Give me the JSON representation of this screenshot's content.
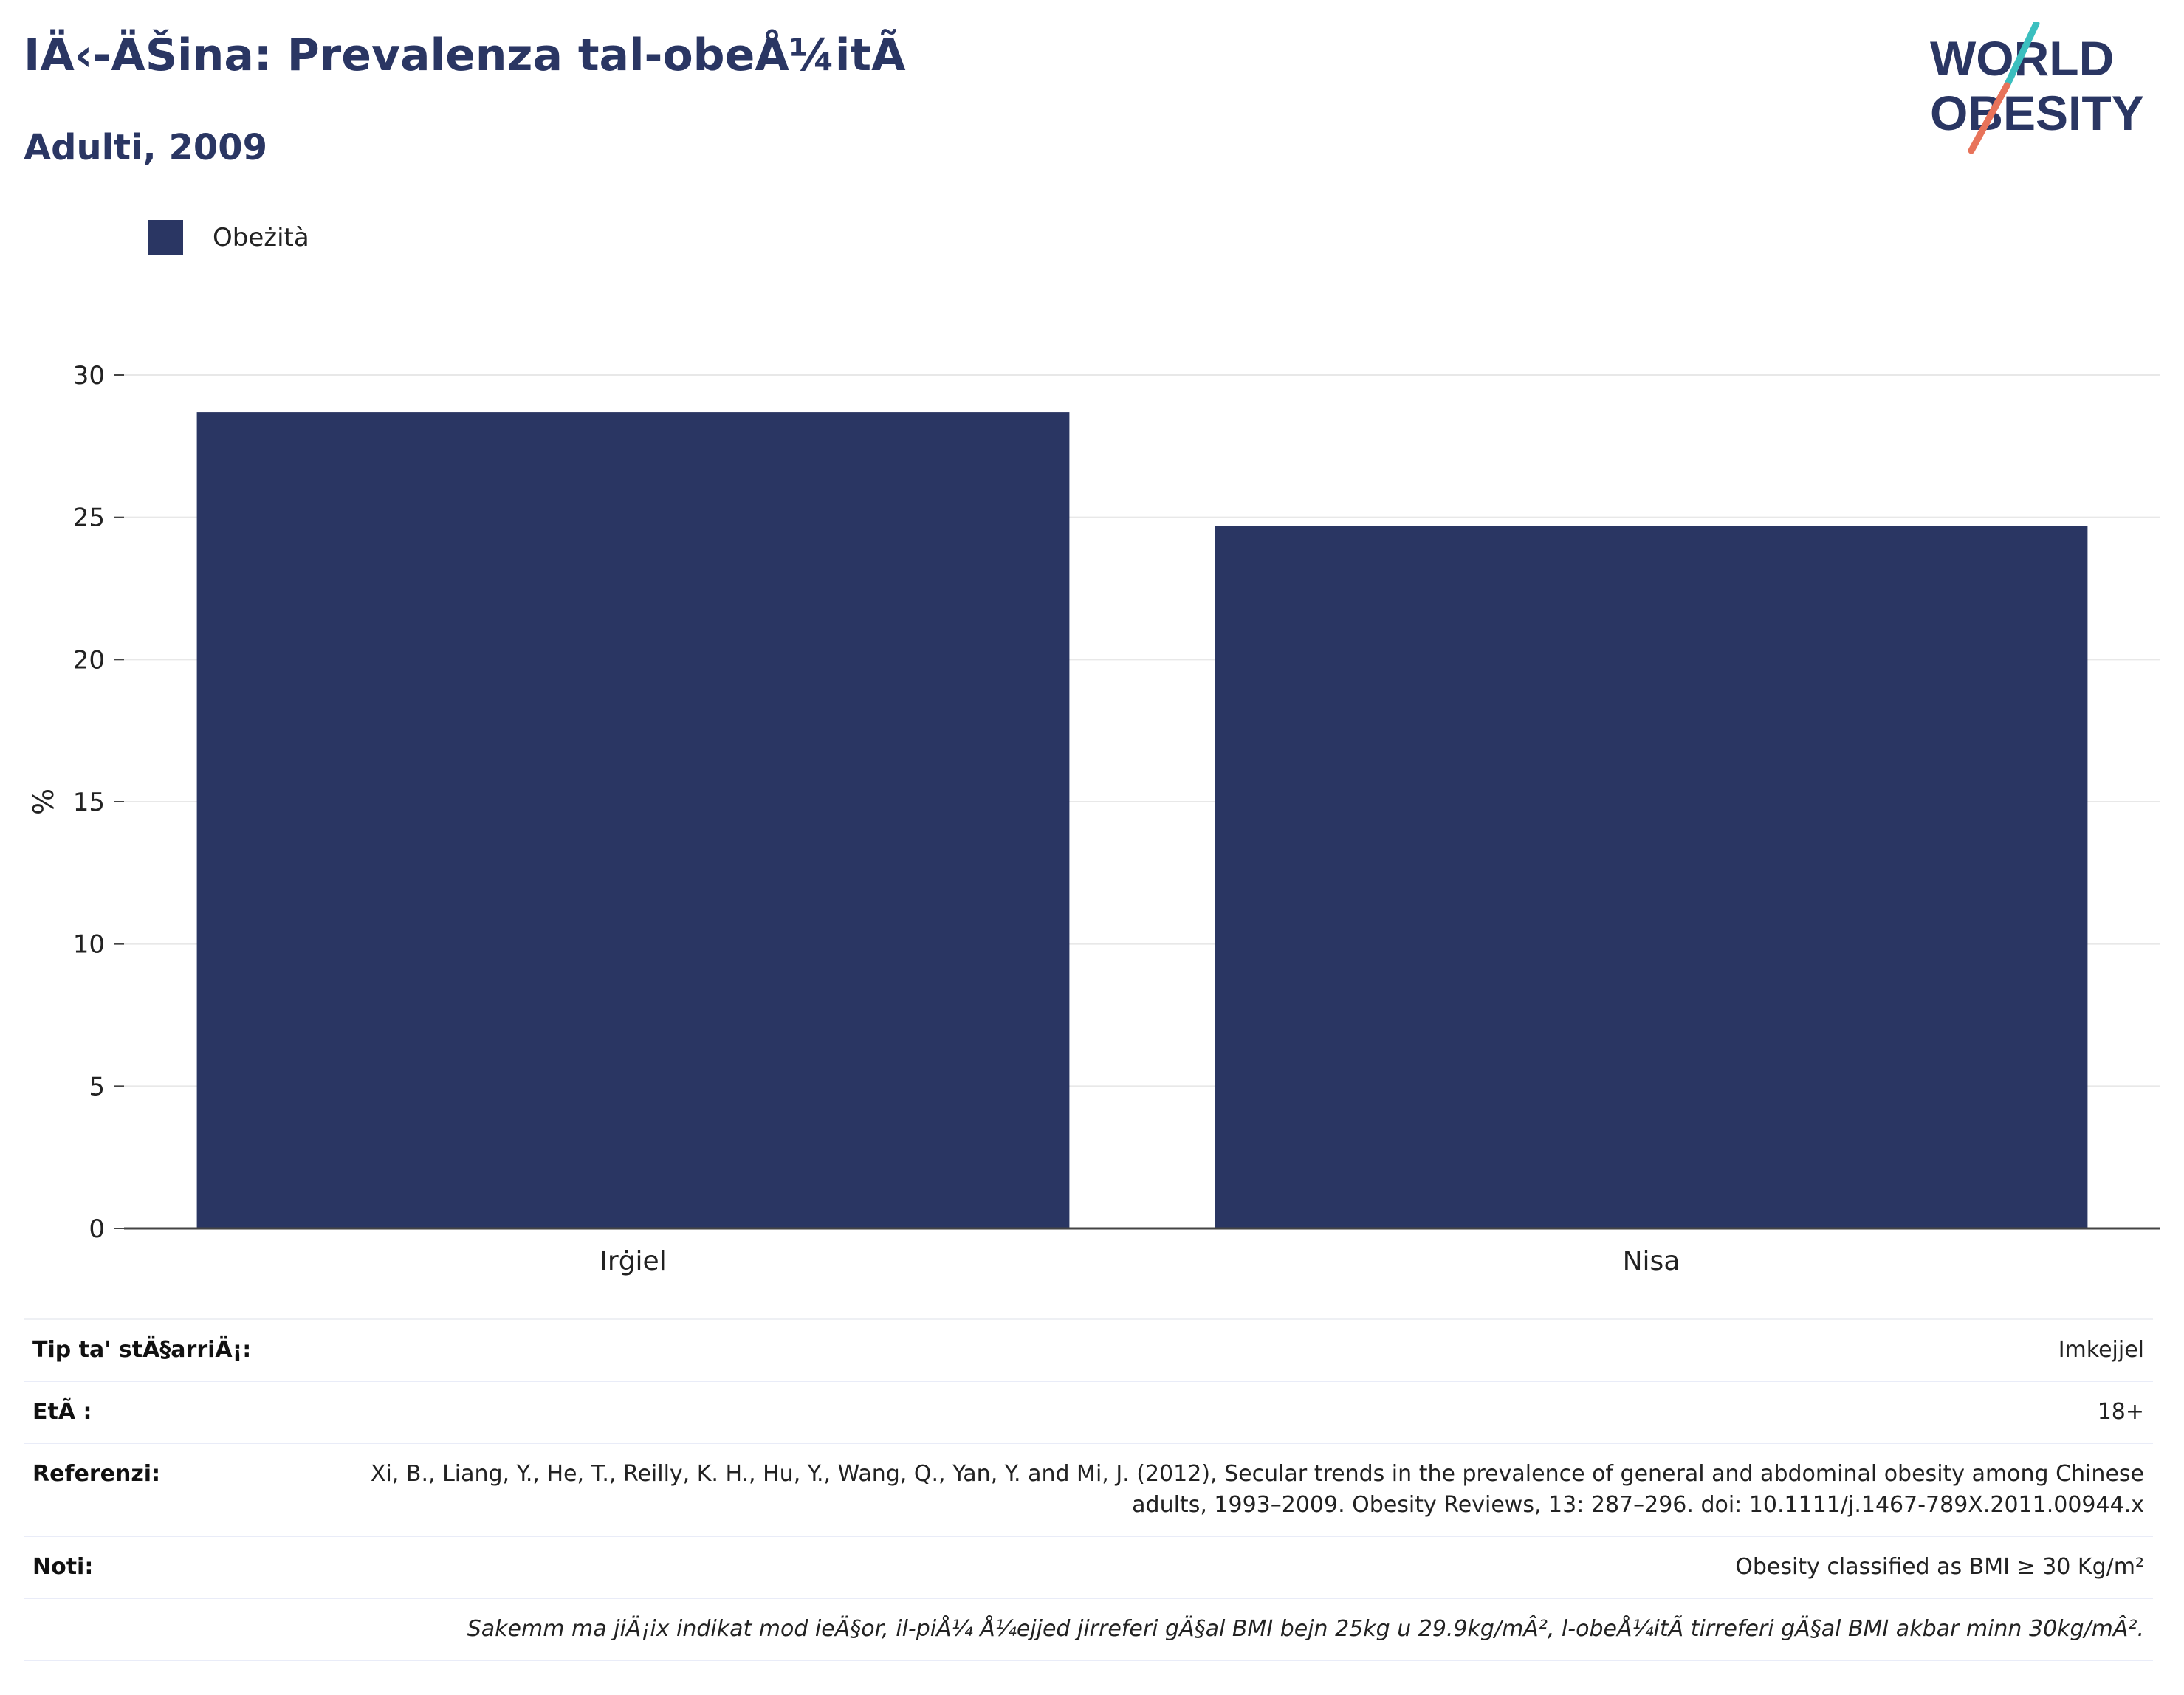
{
  "header": {
    "title": "IÄ‹-ÄŠina: Prevalenza tal-obeÅ¼itÃ",
    "subtitle": "Adulti, 2009"
  },
  "logo": {
    "line1": "WORLD",
    "line2": "OBESITY",
    "colors": {
      "text": "#2a3663",
      "slash_top": "#3bbfbf",
      "slash_bottom": "#e8735a"
    }
  },
  "colors": {
    "bar": "#2a3663",
    "grid": "#e8e8e8",
    "axis": "#444444",
    "text": "#222222"
  },
  "chart_data": {
    "type": "bar",
    "categories": [
      "Irġiel",
      "Nisa"
    ],
    "series": [
      {
        "name": "Obeżità",
        "values": [
          28.7,
          24.7
        ]
      }
    ],
    "ylabel": "%",
    "ylim": [
      0,
      30
    ],
    "yticks": [
      0,
      5,
      10,
      15,
      20,
      25,
      30
    ],
    "grid": true,
    "legend": "top-left"
  },
  "metadata": {
    "rows": [
      {
        "key": "Tip ta' stÄ§arriÄ¡:",
        "value": "Imkejjel"
      },
      {
        "key": "EtÃ :",
        "value": "18+"
      },
      {
        "key": "Referenzi:",
        "value": "Xi, B., Liang, Y., He, T., Reilly, K. H., Hu, Y., Wang, Q., Yan, Y. and Mi, J. (2012), Secular trends in the prevalence of general and abdominal obesity among Chinese adults, 1993–2009. Obesity Reviews, 13: 287–296. doi: 10.1111/j.1467-789X.2011.00944.x"
      },
      {
        "key": "Noti:",
        "value": "Obesity classified as BMI ≥ 30 Kg/m²"
      }
    ],
    "footnote": "Sakemm ma jiÄ¡ix indikat mod ieÄ§or, il-piÅ¼ Å¼ejjed jirreferi gÄ§al BMI bejn 25kg u 29.9kg/mÂ², l-obeÅ¼itÃ  tirreferi gÄ§al BMI akbar minn 30kg/mÂ²."
  }
}
